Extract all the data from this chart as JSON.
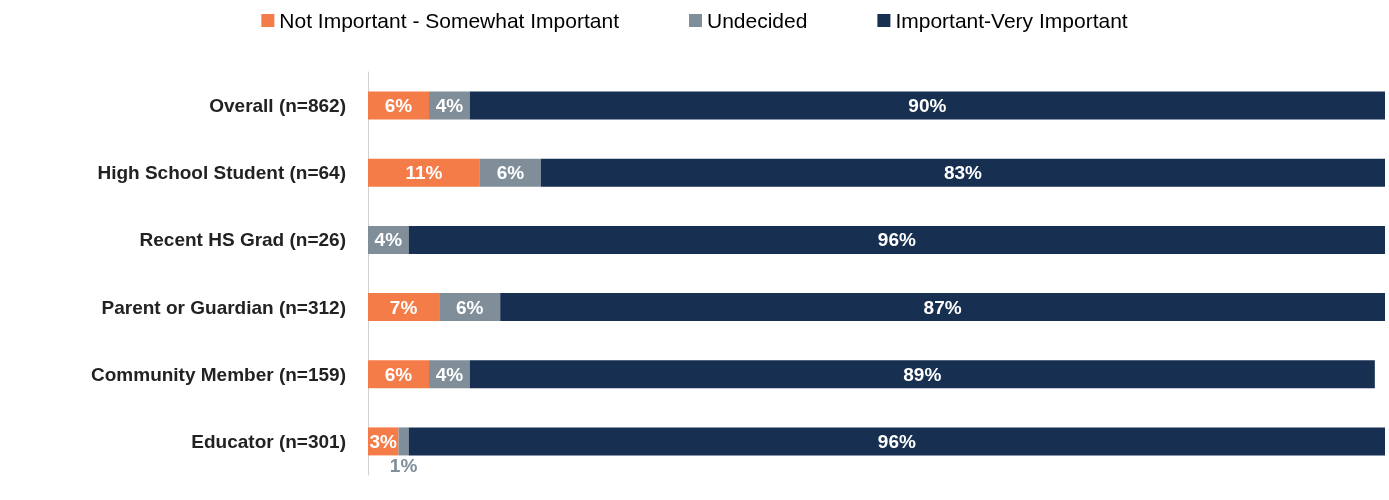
{
  "chart_data": {
    "type": "bar",
    "orientation": "horizontal",
    "stacked": true,
    "legend": "top",
    "tick_labels": "y",
    "xlim": [
      0,
      100
    ],
    "categories": [
      "Overall (n=862)",
      "High School Student (n=64)",
      "Recent HS Grad (n=26)",
      "Parent or Guardian (n=312)",
      "Community Member (n=159)",
      "Educator (n=301)"
    ],
    "series": [
      {
        "name": "Not Important - Somewhat Important",
        "color": "#f47c48",
        "values": [
          6,
          11,
          null,
          7,
          6,
          3
        ],
        "value_labels": [
          "6%",
          "11%",
          null,
          "7%",
          "6%",
          "3%"
        ]
      },
      {
        "name": "Undecided",
        "color": "#7f8e99",
        "values": [
          4,
          6,
          4,
          6,
          4,
          1
        ],
        "value_labels": [
          "4%",
          "6%",
          "4%",
          "6%",
          "4%",
          "1%"
        ]
      },
      {
        "name": "Important-Very Important",
        "color": "#172f50",
        "values": [
          90,
          83,
          96,
          87,
          89,
          96
        ],
        "value_labels": [
          "90%",
          "83%",
          "96%",
          "87%",
          "89%",
          "96%"
        ]
      }
    ]
  }
}
